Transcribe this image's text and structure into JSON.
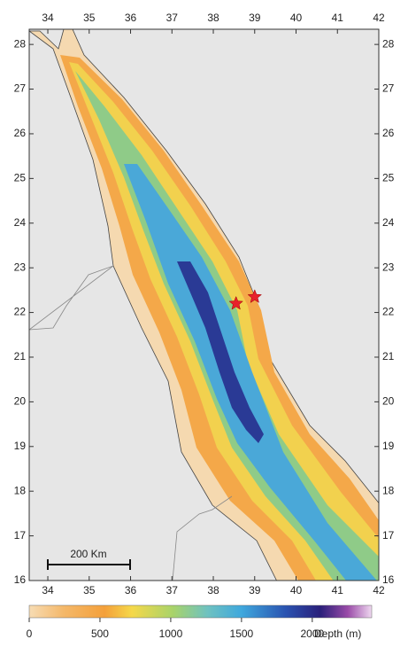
{
  "map": {
    "xlim": [
      33.55,
      42
    ],
    "ylim": [
      16,
      28.34
    ],
    "xticks": [
      34,
      35,
      36,
      37,
      38,
      39,
      40,
      41,
      42
    ],
    "yticks": [
      16,
      17,
      18,
      19,
      20,
      21,
      22,
      23,
      24,
      25,
      26,
      27,
      28
    ],
    "scale_bar": "200 Km",
    "markers": [
      {
        "lon": 38.55,
        "lat": 22.2,
        "color": "#e8212b"
      },
      {
        "lon": 39.0,
        "lat": 22.35,
        "color": "#e8212b"
      }
    ],
    "colorbar": {
      "lim": [
        0,
        2420
      ],
      "ticks": [
        0,
        500,
        1000,
        1500,
        2000
      ],
      "label": "Depth (m)"
    }
  }
}
